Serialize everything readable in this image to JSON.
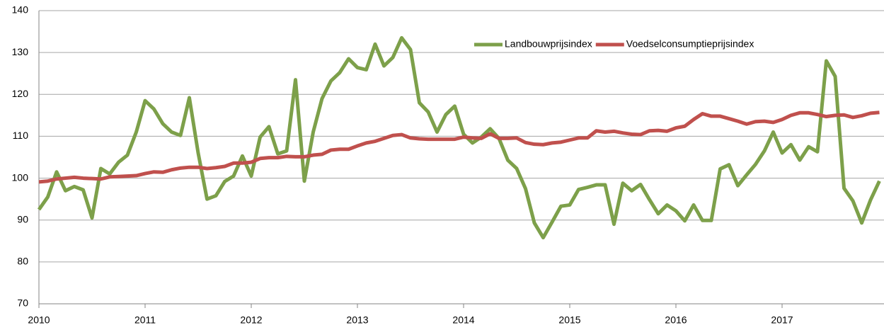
{
  "chart_data": {
    "type": "line",
    "categories": [
      "2010",
      null,
      null,
      null,
      null,
      null,
      null,
      null,
      null,
      null,
      null,
      null,
      "2011",
      null,
      null,
      null,
      null,
      null,
      null,
      null,
      null,
      null,
      null,
      null,
      "2012",
      null,
      null,
      null,
      null,
      null,
      null,
      null,
      null,
      null,
      null,
      null,
      "2013",
      null,
      null,
      null,
      null,
      null,
      null,
      null,
      null,
      null,
      null,
      null,
      "2014",
      null,
      null,
      null,
      null,
      null,
      null,
      null,
      null,
      null,
      null,
      null,
      "2015",
      null,
      null,
      null,
      null,
      null,
      null,
      null,
      null,
      null,
      null,
      null,
      "2016",
      null,
      null,
      null,
      null,
      null,
      null,
      null,
      null,
      null,
      null,
      null,
      "2017",
      null,
      null,
      null,
      null,
      null,
      null,
      null,
      null,
      null,
      null,
      null
    ],
    "series": [
      {
        "name": "Landbouwprijsindex",
        "color": "#7da04a",
        "values": [
          92.5,
          95.5,
          101.5,
          97,
          98,
          97.2,
          90.5,
          102.3,
          101,
          103.8,
          105.5,
          111,
          118.5,
          116.5,
          113,
          111,
          110.2,
          119.2,
          106,
          95,
          95.8,
          99.2,
          100.5,
          105.3,
          100.5,
          109.8,
          112.3,
          105.8,
          106.5,
          123.5,
          99.3,
          111,
          119,
          123.2,
          125.2,
          128.5,
          126.4,
          125.9,
          132,
          126.8,
          128.8,
          133.5,
          130.7,
          118,
          115.8,
          111,
          115.2,
          117.2,
          110.5,
          108.4,
          109.8,
          111.8,
          109.5,
          104.3,
          102.3,
          97.5,
          89.3,
          85.8,
          89.5,
          93.3,
          93.6,
          97.3,
          97.8,
          98.4,
          98.4,
          89,
          98.8,
          97,
          98.5,
          94.9,
          91.5,
          93.6,
          92.2,
          89.8,
          93.6,
          89.9,
          89.9,
          102.2,
          103.2,
          98.2,
          100.8,
          103.3,
          106.5,
          111,
          106,
          108,
          104.3,
          107.5,
          106.3,
          128,
          124.3,
          97.6,
          94.6,
          89.3,
          94.8,
          99.3
        ]
      },
      {
        "name": "Voedselconsumptieprijsindex",
        "color": "#c0504d",
        "values": [
          99.1,
          99.3,
          99.8,
          100,
          100.2,
          100,
          99.9,
          99.8,
          100.3,
          100.4,
          100.5,
          100.6,
          101.1,
          101.5,
          101.4,
          102,
          102.4,
          102.6,
          102.6,
          102.3,
          102.5,
          102.8,
          103.6,
          103.6,
          103.8,
          104.7,
          104.9,
          104.9,
          105.2,
          105.1,
          105.1,
          105.5,
          105.7,
          106.7,
          106.9,
          106.9,
          107.7,
          108.4,
          108.8,
          109.5,
          110.2,
          110.4,
          109.6,
          109.4,
          109.3,
          109.3,
          109.3,
          109.3,
          109.8,
          109.6,
          109.5,
          110.6,
          109.5,
          109.5,
          109.6,
          108.5,
          108.1,
          108,
          108.4,
          108.6,
          109.1,
          109.6,
          109.6,
          111.3,
          111,
          111.2,
          110.8,
          110.5,
          110.4,
          111.3,
          111.4,
          111.2,
          112,
          112.4,
          114,
          115.4,
          114.8,
          114.8,
          114.2,
          113.6,
          112.9,
          113.5,
          113.6,
          113.3,
          114,
          115,
          115.6,
          115.6,
          115.2,
          114.7,
          115,
          115.1,
          114.5,
          114.9,
          115.5,
          115.7
        ]
      }
    ],
    "ylim": [
      70,
      140
    ],
    "yticks": [
      70,
      80,
      90,
      100,
      110,
      120,
      130,
      140
    ],
    "grid": true,
    "legend": "top-right"
  }
}
